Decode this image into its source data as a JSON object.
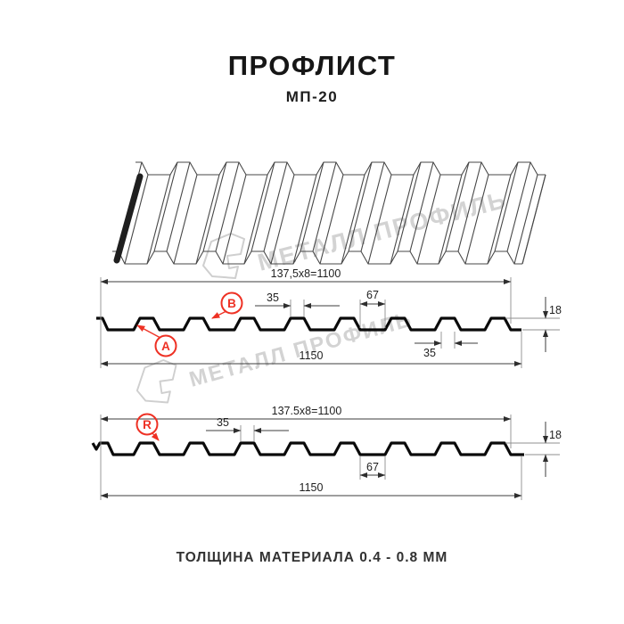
{
  "header": {
    "title": "ПРОФЛИСТ",
    "subtitle": "МП-20"
  },
  "watermark": {
    "brand_text": "МЕТАЛЛ ПРОФИЛЬ"
  },
  "profile_top": {
    "badges": {
      "a": "A",
      "b": "B"
    },
    "dims": {
      "pitch": "137,5x8=1100",
      "rib_top_width": "35",
      "rib_base_width": "67",
      "height": "18",
      "rib_bottom_width": "35",
      "overall_width": "1150"
    }
  },
  "profile_bottom": {
    "badges": {
      "r": "R"
    },
    "dims": {
      "pitch": "137.5x8=1100",
      "rib_top_width": "35",
      "valley_width": "67",
      "height": "18",
      "overall_width": "1150"
    }
  },
  "footer": {
    "note": "ТОЛЩИНА МАТЕРИАЛА 0.4 - 0.8 ММ"
  },
  "colors": {
    "accent_red": "#ee3124",
    "line_black": "#0a0a0a",
    "dim_gray": "#3c3c3c",
    "watermark_gray": "#d3d3d3",
    "background": "#ffffff"
  }
}
